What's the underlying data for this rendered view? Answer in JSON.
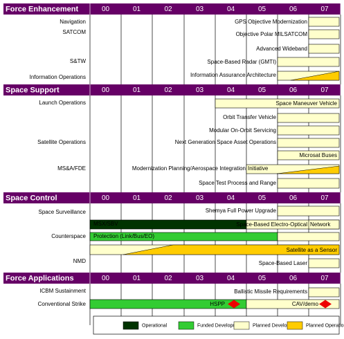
{
  "years": [
    "00",
    "01",
    "02",
    "03",
    "04",
    "05",
    "06",
    "07"
  ],
  "sections": [
    {
      "title": "Force Enhancement",
      "row_labels": [
        "Navigation",
        "SATCOM",
        "S&TW",
        "Information Operations"
      ],
      "items": [
        "GPS Objective Modernization",
        "Objective Polar MILSATCOM",
        "Advanced Wideband",
        "Space-Based Radar (GMTI)",
        "Information Assurance Architecture"
      ]
    },
    {
      "title": "Space Support",
      "row_labels": [
        "Launch Operations",
        "Satellite Operations",
        "MS&A/FDE"
      ],
      "items": [
        "Space Maneuver Vehicle",
        "Orbit Transfer Vehicle",
        "Modular On-Orbit Servicing",
        "Next Generation Space Asset Operations",
        "Microsat Buses",
        "Modernization Planning/Aerospace Integration",
        "Initiative",
        "Space Test Process and Range"
      ]
    },
    {
      "title": "Space Control",
      "row_labels": [
        "Space Surveillance",
        "Counterspace",
        "NMD"
      ],
      "items": [
        "Shemya Full Power Upgrade",
        "MSX/SBV",
        "Space-Based Electro-Optical",
        "Network",
        "Protection (Link/Bus/EO)",
        "Satellite as a Sensor",
        "Space-Based Laser"
      ]
    },
    {
      "title": "Force Applications",
      "row_labels": [
        "ICBM Sustainment",
        "Conventional Strike"
      ],
      "items": [
        "Ballistic Missile Requirements",
        "HSPP",
        "CAV/demo"
      ]
    }
  ],
  "legend": [
    {
      "label": "Operational",
      "color": "#003300"
    },
    {
      "label": "Funded Development",
      "color": "#33cc33"
    },
    {
      "label": "Planned Development",
      "color": "#ffffcc"
    },
    {
      "label": "Planned Operational",
      "color": "#ffcc00"
    }
  ]
}
